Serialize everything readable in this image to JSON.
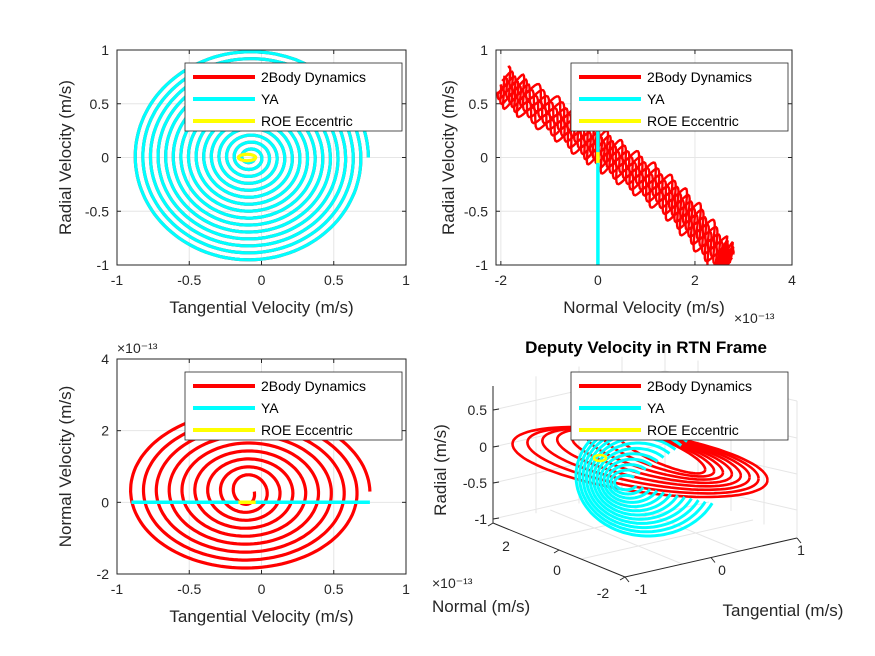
{
  "colors": {
    "two_body": "#ff0000",
    "ya": "#00ffff",
    "roe": "#ffff00",
    "axis": "#262626",
    "grid": "#e6e6e6"
  },
  "legend": [
    "2Body Dynamics",
    "YA",
    "ROE Eccentric"
  ],
  "chart_data": [
    {
      "type": "line",
      "title": "",
      "xlabel": "Tangential Velocity (m/s)",
      "ylabel": "Radial Velocity (m/s)",
      "xlim": [
        -1,
        1
      ],
      "ylim": [
        -1,
        1
      ],
      "xticks": [
        "-1",
        "-0.5",
        "0",
        "0.5",
        "1"
      ],
      "yticks": [
        "-1",
        "-0.5",
        "0",
        "0.5",
        "1"
      ],
      "exponent": "",
      "grid": true,
      "legend_placement": "top-right",
      "series": [
        {
          "name": "2Body Dynamics",
          "shape": "spiral",
          "center": [
            -0.08,
            0.0
          ],
          "r_outer": [
            0.82,
            1.0
          ],
          "r_inner": [
            0.03,
            0.03
          ],
          "turns": 15
        },
        {
          "name": "YA",
          "shape": "spiral",
          "center": [
            -0.08,
            0.0
          ],
          "r_outer": [
            0.82,
            1.0
          ],
          "r_inner": [
            0.03,
            0.03
          ],
          "turns": 15
        },
        {
          "name": "ROE Eccentric",
          "shape": "ellipse",
          "center": [
            -0.1,
            0.0
          ],
          "r": [
            0.06,
            0.03
          ]
        }
      ]
    },
    {
      "type": "line",
      "title": "",
      "xlabel": "Normal Velocity (m/s)",
      "ylabel": "Radial Velocity (m/s)",
      "xlim": [
        -2.1,
        4
      ],
      "ylim": [
        -1,
        1
      ],
      "xticks": [
        "-2",
        "0",
        "2",
        "4"
      ],
      "yticks": [
        "-1",
        "-0.5",
        "0",
        "0.5",
        "1"
      ],
      "exponent": "×10⁻¹³",
      "grid": true,
      "legend_placement": "top-right",
      "series": [
        {
          "name": "2Body Dynamics",
          "shape": "band",
          "points": [
            [
              -2.0,
              0.68
            ],
            [
              -1.5,
              0.55
            ],
            [
              -0.8,
              0.35
            ],
            [
              -0.2,
              0.15
            ],
            [
              0.3,
              0.0
            ],
            [
              0.9,
              -0.18
            ],
            [
              1.5,
              -0.38
            ],
            [
              2.0,
              -0.62
            ],
            [
              2.5,
              -0.9
            ],
            [
              2.7,
              -1.0
            ]
          ]
        },
        {
          "name": "YA",
          "shape": "segment",
          "points": [
            [
              0,
              0.52
            ],
            [
              0,
              -1.0
            ]
          ]
        },
        {
          "name": "ROE Eccentric",
          "shape": "segment",
          "points": [
            [
              0,
              0.05
            ],
            [
              0,
              -0.05
            ]
          ]
        }
      ]
    },
    {
      "type": "line",
      "title": "",
      "xlabel": "Tangential Velocity (m/s)",
      "ylabel": "Normal Velocity (m/s)",
      "xlim": [
        -1,
        1
      ],
      "ylim": [
        -2,
        4
      ],
      "xticks": [
        "-1",
        "-0.5",
        "0",
        "0.5",
        "1"
      ],
      "yticks": [
        "-2",
        "0",
        "2",
        "4"
      ],
      "exponent": "×10⁻¹³",
      "grid": true,
      "legend_placement": "top-right",
      "series": [
        {
          "name": "2Body Dynamics",
          "shape": "spiral",
          "center": [
            -0.1,
            0.3
          ],
          "r_outer": [
            0.85,
            2.3
          ],
          "r_inner": [
            0.05,
            0.3
          ],
          "turns": 9
        },
        {
          "name": "YA",
          "shape": "segment",
          "points": [
            [
              -0.9,
              0
            ],
            [
              0.75,
              0
            ]
          ]
        },
        {
          "name": "ROE Eccentric",
          "shape": "segment",
          "points": [
            [
              -0.16,
              0
            ],
            [
              -0.04,
              0
            ]
          ]
        }
      ]
    },
    {
      "type": "line",
      "title": "Deputy Velocity in RTN Frame",
      "xlabel": "Tangential (m/s)",
      "ylabel": "Radial (m/s)",
      "zlabel": "Normal (m/s)",
      "xticks": [
        "-1",
        "0",
        "1"
      ],
      "yticks": [
        "-1",
        "-0.5",
        "0",
        "0.5"
      ],
      "zticks": [
        "-2",
        "0",
        "2"
      ],
      "exponent": "×10⁻¹³",
      "grid": true,
      "legend_placement": "top-right",
      "series": [
        {
          "name": "2Body Dynamics",
          "shape": "3d"
        },
        {
          "name": "YA",
          "shape": "3d"
        },
        {
          "name": "ROE Eccentric",
          "shape": "3d"
        }
      ]
    }
  ]
}
